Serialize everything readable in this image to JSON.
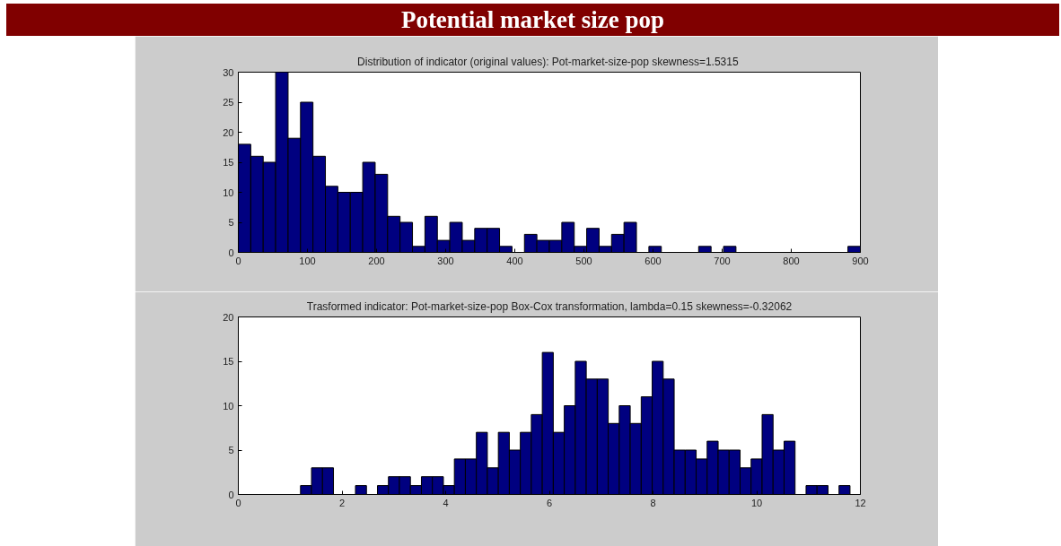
{
  "chart_data": [
    {
      "type": "histogram",
      "annotations": [
        "Potential market size pop"
      ],
      "title": "Distribution of indicator (original values):  Pot-market-size-pop skewness=1.5315",
      "color": "#000080",
      "bins": [
        0,
        18,
        36,
        54,
        72,
        90,
        108,
        126,
        144,
        162,
        180,
        198,
        216,
        234,
        252,
        270,
        288,
        306,
        324,
        342,
        360,
        378,
        396,
        414,
        432,
        450,
        468,
        486,
        504,
        522,
        540,
        558,
        576,
        594,
        612,
        630,
        648,
        666,
        684,
        702,
        720,
        738,
        756,
        774,
        792,
        810,
        828,
        846,
        864,
        882,
        900
      ],
      "values": [
        18,
        16,
        15,
        30,
        19,
        25,
        16,
        11,
        10,
        10,
        15,
        13,
        6,
        5,
        1,
        6,
        2,
        5,
        2,
        4,
        4,
        1,
        0,
        3,
        2,
        2,
        5,
        1,
        4,
        1,
        3,
        5,
        0,
        1,
        0,
        0,
        0,
        1,
        0,
        1,
        0,
        0,
        0,
        0,
        0,
        0,
        0,
        0,
        0,
        1
      ],
      "xlim": [
        0,
        900
      ],
      "ylim": [
        0,
        30
      ],
      "xticks": [
        0,
        100,
        200,
        300,
        400,
        500,
        600,
        700,
        800,
        900
      ],
      "yticks": [
        0,
        5,
        10,
        15,
        20,
        25,
        30
      ],
      "grid": false
    },
    {
      "type": "histogram",
      "title": "Trasformed indicator: Pot-market-size-pop Box-Cox transformation, lambda=0.15 skewness=-0.32062",
      "color": "#000080",
      "bins": [
        1.2,
        1.412,
        1.624,
        1.836,
        2.048,
        2.26,
        2.472,
        2.684,
        2.896,
        3.108,
        3.32,
        3.532,
        3.744,
        3.956,
        4.168,
        4.38,
        4.592,
        4.804,
        5.016,
        5.228,
        5.44,
        5.652,
        5.864,
        6.076,
        6.288,
        6.5,
        6.712,
        6.924,
        7.136,
        7.348,
        7.56,
        7.772,
        7.984,
        8.196,
        8.408,
        8.62,
        8.832,
        9.044,
        9.256,
        9.468,
        9.68,
        9.892,
        10.104,
        10.316,
        10.528,
        10.74,
        10.952,
        11.164,
        11.376,
        11.588,
        11.8
      ],
      "values": [
        1,
        3,
        3,
        0,
        0,
        1,
        0,
        1,
        2,
        2,
        1,
        2,
        2,
        1,
        4,
        4,
        7,
        3,
        7,
        5,
        7,
        9,
        16,
        7,
        10,
        15,
        13,
        13,
        8,
        10,
        8,
        11,
        15,
        13,
        5,
        5,
        4,
        6,
        5,
        5,
        3,
        4,
        9,
        5,
        6,
        0,
        1,
        1,
        0,
        1
      ],
      "xlim": [
        0,
        12
      ],
      "ylim": [
        0,
        20
      ],
      "xticks": [
        0,
        2,
        4,
        6,
        8,
        10,
        12
      ],
      "yticks": [
        0,
        5,
        10,
        15,
        20
      ],
      "grid": false
    }
  ]
}
